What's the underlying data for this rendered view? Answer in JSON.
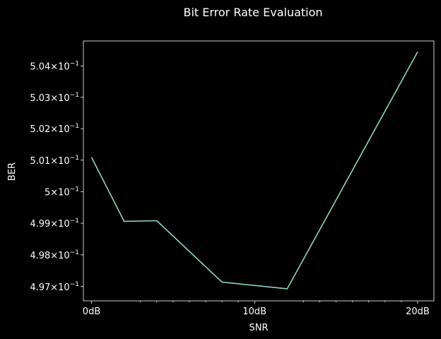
{
  "chart_data": {
    "type": "line",
    "title": "Bit Error Rate Evaluation",
    "xlabel": "SNR",
    "ylabel": "BER",
    "y_scale": "log",
    "x_ticks": [
      {
        "value": 0,
        "label": "0dB"
      },
      {
        "value": 10,
        "label": "10dB"
      },
      {
        "value": 20,
        "label": "20dB"
      }
    ],
    "y_ticks": [
      {
        "value": 0.497,
        "mantissa": "4.97"
      },
      {
        "value": 0.498,
        "mantissa": "4.98"
      },
      {
        "value": 0.499,
        "mantissa": "4.99"
      },
      {
        "value": 0.5,
        "mantissa": "5"
      },
      {
        "value": 0.501,
        "mantissa": "5.01"
      },
      {
        "value": 0.502,
        "mantissa": "5.02"
      },
      {
        "value": 0.503,
        "mantissa": "5.03"
      },
      {
        "value": 0.504,
        "mantissa": "5.04"
      }
    ],
    "tick_base": "10",
    "tick_exponent": "−1",
    "xlim": [
      -0.5,
      21
    ],
    "ylim": [
      0.49655,
      0.5048
    ],
    "grid": false,
    "series": [
      {
        "color": "#8dd3c7",
        "x": [
          0,
          2,
          4,
          8,
          12,
          20
        ],
        "y": [
          0.50109,
          0.49906,
          0.49908,
          0.49714,
          0.49693,
          0.50445
        ]
      }
    ]
  },
  "colors": {
    "background": "#000000",
    "foreground": "#ffffff",
    "line": "#8dd3c7"
  }
}
